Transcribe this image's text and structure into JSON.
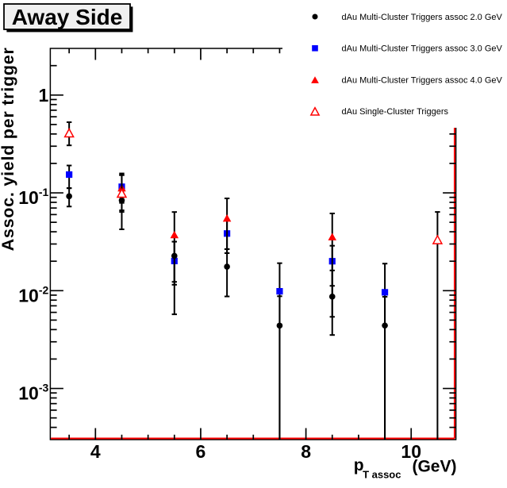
{
  "chart_data": {
    "type": "scatter",
    "title": "Away Side",
    "xlabel": "p_{T assoc} (GeV)",
    "xlabel_parts": {
      "main": "p",
      "sub": "T assoc",
      "unit": "(GeV)"
    },
    "ylabel": "Assoc. yield per trigger",
    "xscale": "linear",
    "yscale": "log",
    "xlim": [
      3.142,
      10.85
    ],
    "ylim": [
      0.0003,
      3.0
    ],
    "grid": false,
    "background_color": "#ffffff",
    "frame_accent_color": "#ff0000",
    "axis_color": "#000000",
    "legend_position": "top-right",
    "x_major_ticks": [
      4,
      6,
      8,
      10
    ],
    "x_tick_labels": [
      "4",
      "6",
      "8",
      "10"
    ],
    "x_minor_ticks": [
      3.5,
      4.5,
      5,
      5.5,
      6.5,
      7,
      7.5,
      8.5,
      9,
      9.5,
      10.5
    ],
    "y_major_ticks": [
      {
        "value": 1,
        "mantissa": "1",
        "exponent": ""
      },
      {
        "value": 0.1,
        "mantissa": "10",
        "exponent": "-1"
      },
      {
        "value": 0.01,
        "mantissa": "10",
        "exponent": "-2"
      },
      {
        "value": 0.001,
        "mantissa": "10",
        "exponent": "-3"
      }
    ],
    "y_minor_mantissas": [
      2,
      3,
      4,
      5,
      6,
      7,
      8,
      9
    ],
    "series": [
      {
        "name": "dAu Multi-Cluster Triggers assoc 2.0 GeV",
        "marker": "circle",
        "color": "#000000",
        "fill": "solid",
        "points": [
          {
            "x": 3.5,
            "y": 0.0923,
            "ylow": 0.0725,
            "yhigh": 0.112
          },
          {
            "x": 4.5,
            "y": 0.0839,
            "ylow": 0.0424,
            "yhigh": 0.105
          },
          {
            "x": 5.5,
            "y": 0.0227,
            "ylow": 0.0123,
            "yhigh": 0.0317
          },
          {
            "x": 6.5,
            "y": 0.0176,
            "ylow": 0.00873,
            "yhigh": 0.0266
          },
          {
            "x": 7.5,
            "y": 0.00439,
            "ylow": null,
            "yhigh": 0.00877
          },
          {
            "x": 8.5,
            "y": 0.00869,
            "ylow": 0.00352,
            "yhigh": 0.0161
          },
          {
            "x": 9.5,
            "y": 0.0044,
            "ylow": null,
            "yhigh": 0.00866
          }
        ]
      },
      {
        "name": "dAu Multi-Cluster Triggers assoc 3.0 GeV",
        "marker": "square",
        "color": "#0000ff",
        "fill": "solid",
        "points": [
          {
            "x": 3.5,
            "y": 0.1538,
            "ylow": 0.1115,
            "yhigh": 0.1905
          },
          {
            "x": 4.5,
            "y": 0.1155,
            "ylow": 0.079,
            "yhigh": 0.158
          },
          {
            "x": 5.5,
            "y": 0.0201,
            "ylow": 0.00573,
            "yhigh": 0.0317
          },
          {
            "x": 6.5,
            "y": 0.0384,
            "ylow": 0.0266,
            "yhigh": 0.0525
          },
          {
            "x": 7.5,
            "y": 0.00985,
            "ylow": null,
            "yhigh": 0.0191
          },
          {
            "x": 8.5,
            "y": 0.02,
            "ylow": 0.0112,
            "yhigh": 0.0288
          },
          {
            "x": 9.5,
            "y": 0.00962,
            "ylow": null,
            "yhigh": 0.0189
          }
        ]
      },
      {
        "name": "dAu Multi-Cluster Triggers assoc 4.0 GeV",
        "marker": "triangle",
        "color": "#ff0000",
        "fill": "solid",
        "points": [
          {
            "x": 4.5,
            "y": 0.1127,
            "ylow": 0.0663,
            "yhigh": 0.152
          },
          {
            "x": 5.5,
            "y": 0.0375,
            "ylow": 0.0115,
            "yhigh": 0.0637
          },
          {
            "x": 6.5,
            "y": 0.0554,
            "ylow": 0.0242,
            "yhigh": 0.0878
          },
          {
            "x": 8.5,
            "y": 0.0357,
            "ylow": 0.0054,
            "yhigh": 0.0616
          }
        ]
      },
      {
        "name": "dAu Single-Cluster Triggers",
        "marker": "triangle",
        "color": "#ff0000",
        "fill": "open",
        "points": [
          {
            "x": 3.5,
            "y": 0.4105,
            "ylow": 0.306,
            "yhigh": 0.528
          },
          {
            "x": 4.5,
            "y": 0.0992,
            "ylow": 0.0638,
            "yhigh": 0.152
          },
          {
            "x": 10.5,
            "y": 0.0332,
            "ylow": null,
            "yhigh": 0.0638
          }
        ]
      }
    ],
    "draw_order": [
      1,
      0,
      2,
      3
    ],
    "error_bar_color": "#000000"
  },
  "title_box": {
    "label": "Away Side",
    "fill": "#f0f0f0",
    "border": "#000000",
    "shadow": "#000000"
  },
  "legend": {
    "background": "#ffffff"
  }
}
